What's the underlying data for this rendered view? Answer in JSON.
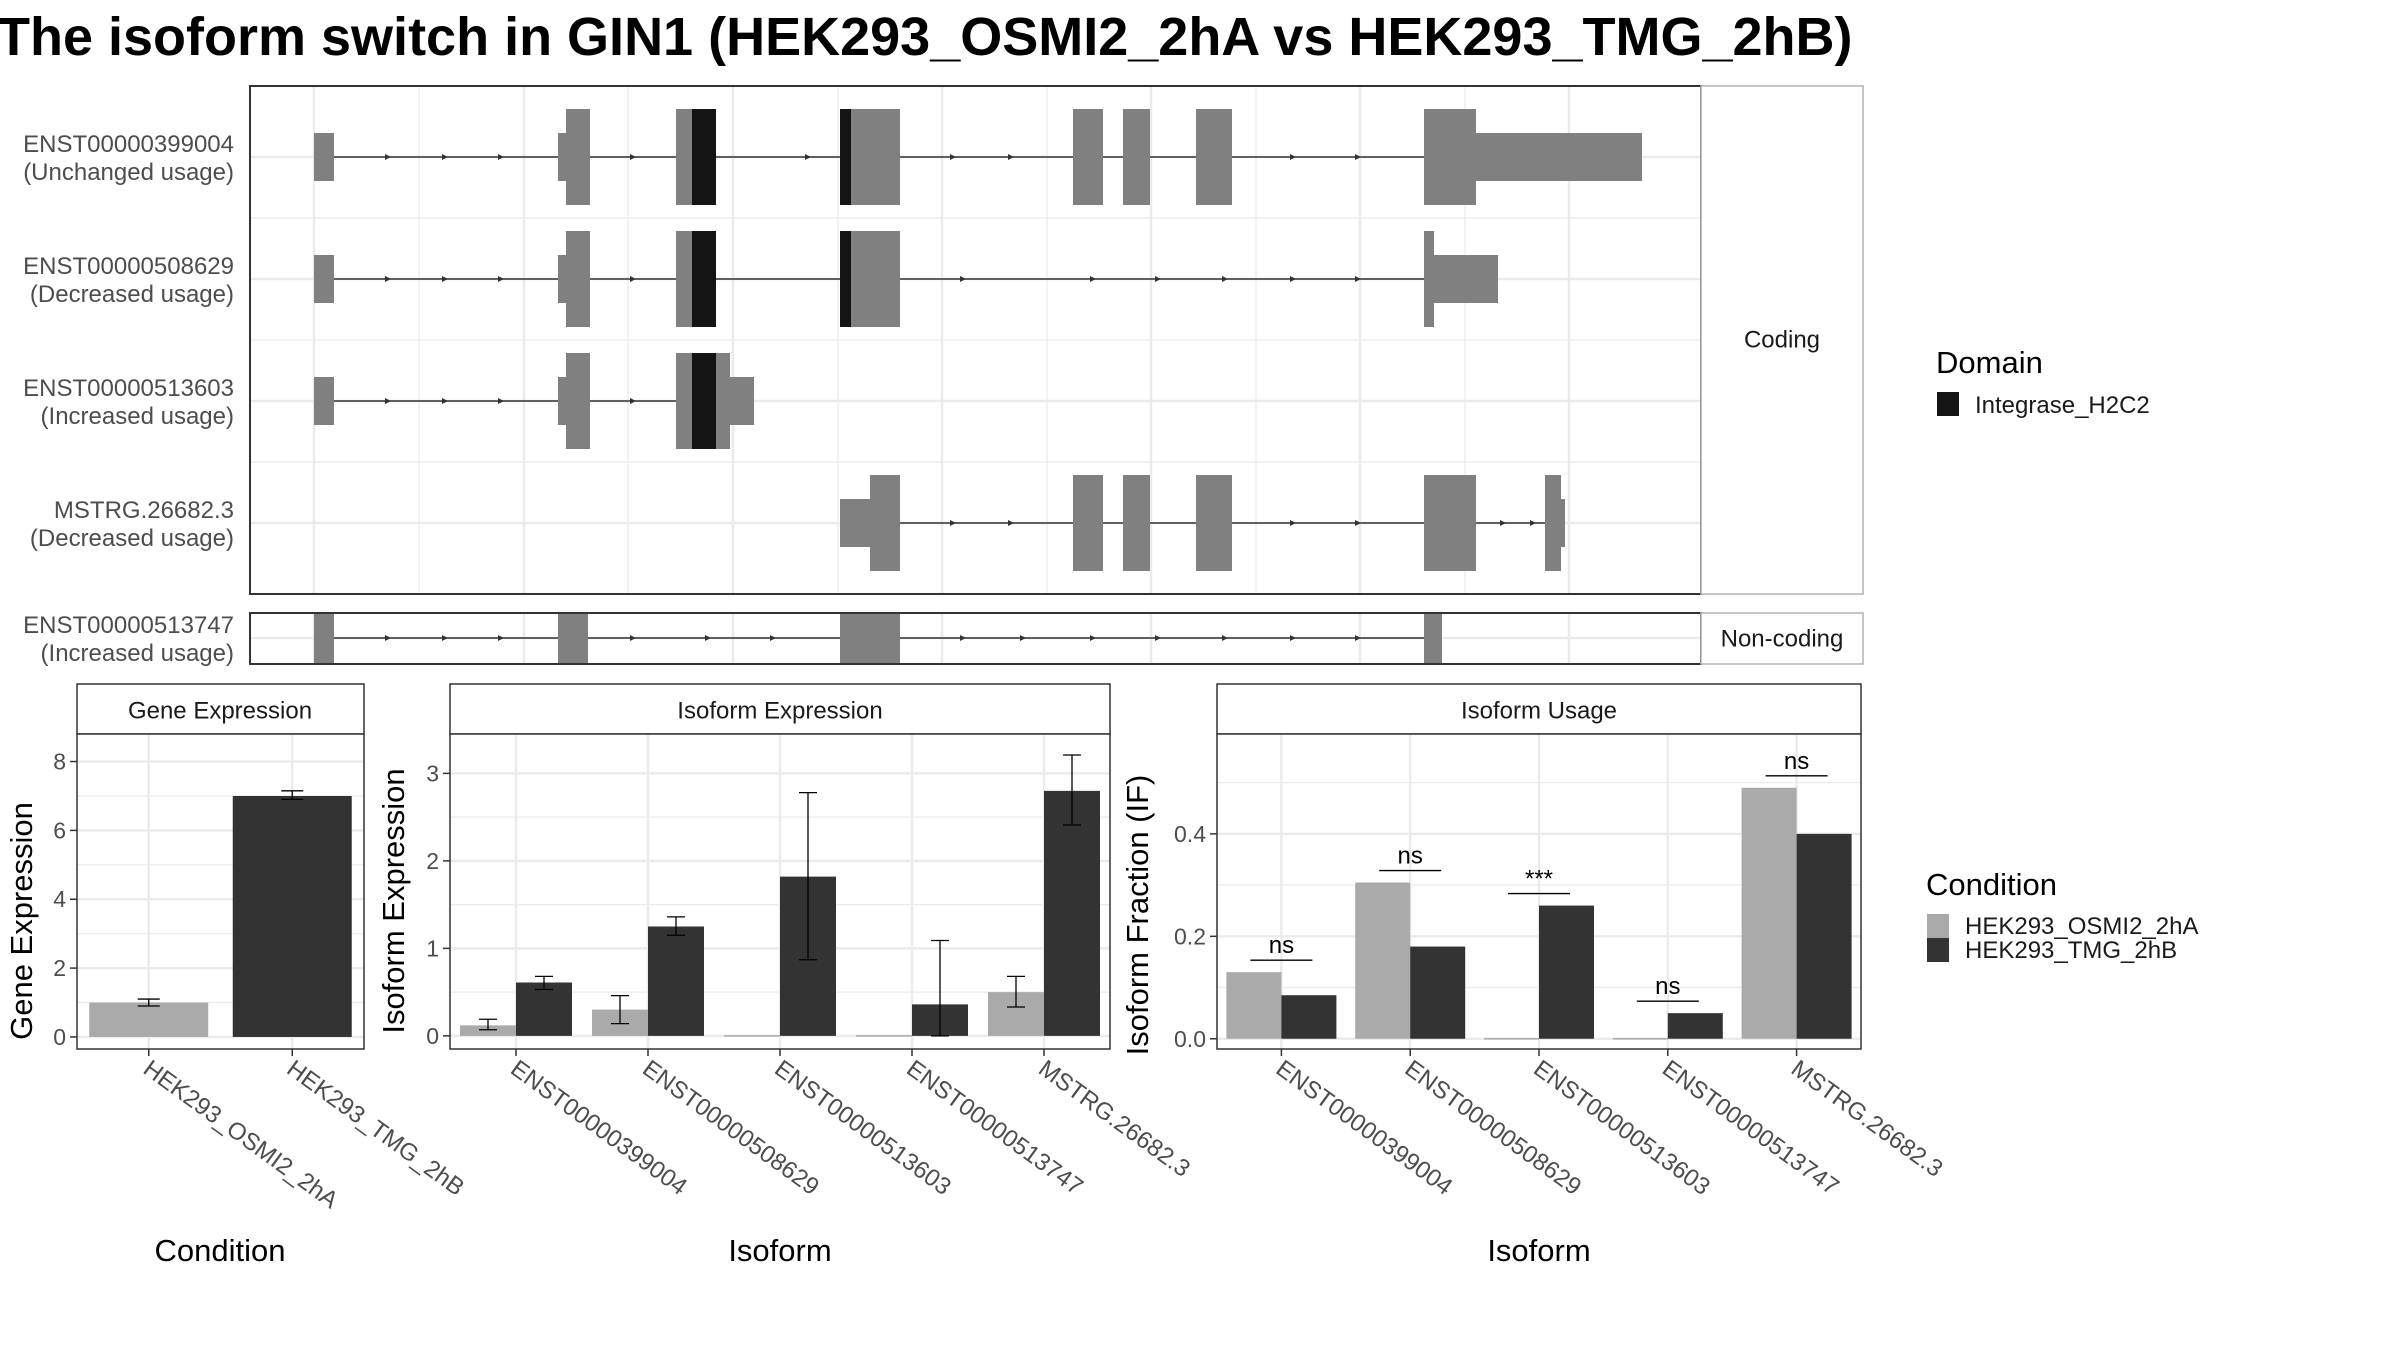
{
  "title": "The isoform switch in GIN1 (HEK293_OSMI2_2hA vs HEK293_TMG_2hB)",
  "colors": {
    "exon": "#808080",
    "domain": "#141414",
    "cond_a": "#aaaaaa",
    "cond_b": "#333333",
    "grid": "#ebebeb",
    "panel_border": "#333333",
    "strip_border": "#b3b3b3"
  },
  "structure": {
    "coding_label": "Coding",
    "noncoding_label": "Non-coding",
    "transcripts": [
      {
        "id": "ENST00000399004",
        "usage": "(Unchanged usage)",
        "group": "coding"
      },
      {
        "id": "ENST00000508629",
        "usage": "(Decreased usage)",
        "group": "coding"
      },
      {
        "id": "ENST00000513603",
        "usage": "(Increased usage)",
        "group": "coding"
      },
      {
        "id": "MSTRG.26682.3",
        "usage": "(Decreased usage)",
        "group": "coding"
      },
      {
        "id": "ENST00000513747",
        "usage": "(Increased usage)",
        "group": "noncoding"
      }
    ]
  },
  "domain_legend": {
    "title": "Domain",
    "items": [
      "Integrase_H2C2"
    ]
  },
  "condition_legend": {
    "title": "Condition",
    "items": [
      "HEK293_OSMI2_2hA",
      "HEK293_TMG_2hB"
    ]
  },
  "chart_data": [
    {
      "type": "bar",
      "panel": "Gene Expression",
      "xlabel": "Condition",
      "ylabel": "Gene Expression",
      "categories": [
        "HEK293_OSMI2_2hA",
        "HEK293_TMG_2hB"
      ],
      "values": [
        1.0,
        7.0
      ],
      "errors": [
        [
          0.9,
          1.1
        ],
        [
          6.9,
          7.15
        ]
      ],
      "ylim": [
        -0.35,
        8.8
      ],
      "yticks": [
        0,
        2,
        4,
        6,
        8
      ],
      "grid": true
    },
    {
      "type": "bar",
      "panel": "Isoform Expression",
      "xlabel": "Isoform",
      "ylabel": "Isoform Expression",
      "categories": [
        "ENST00000399004",
        "ENST00000508629",
        "ENST00000513603",
        "ENST00000513747",
        "MSTRG.26682.3"
      ],
      "series": [
        {
          "name": "HEK293_OSMI2_2hA",
          "values": [
            0.12,
            0.3,
            0.0,
            0.0,
            0.5
          ],
          "errors": [
            [
              0.07,
              0.19
            ],
            [
              0.14,
              0.46
            ],
            null,
            null,
            [
              0.33,
              0.68
            ]
          ]
        },
        {
          "name": "HEK293_TMG_2hB",
          "values": [
            0.61,
            1.25,
            1.82,
            0.36,
            2.8
          ],
          "errors": [
            [
              0.53,
              0.68
            ],
            [
              1.15,
              1.36
            ],
            [
              0.87,
              2.78
            ],
            [
              0.0,
              1.09
            ],
            [
              2.41,
              3.21
            ]
          ]
        }
      ],
      "ylim": [
        -0.15,
        3.45
      ],
      "yticks": [
        0,
        1,
        2,
        3
      ],
      "grid": true
    },
    {
      "type": "bar",
      "panel": "Isoform Usage",
      "xlabel": "Isoform",
      "ylabel": "Isoform Fraction (IF)",
      "categories": [
        "ENST00000399004",
        "ENST00000508629",
        "ENST00000513603",
        "ENST00000513747",
        "MSTRG.26682.3"
      ],
      "series": [
        {
          "name": "HEK293_OSMI2_2hA",
          "values": [
            0.13,
            0.305,
            0.0,
            0.0,
            0.49
          ]
        },
        {
          "name": "HEK293_TMG_2hB",
          "values": [
            0.085,
            0.18,
            0.26,
            0.05,
            0.4
          ]
        }
      ],
      "significance": [
        "ns",
        "ns",
        "***",
        "ns",
        "ns"
      ],
      "ylim": [
        -0.02,
        0.595
      ],
      "yticks": [
        0.0,
        0.2,
        0.4
      ],
      "grid": true
    }
  ]
}
